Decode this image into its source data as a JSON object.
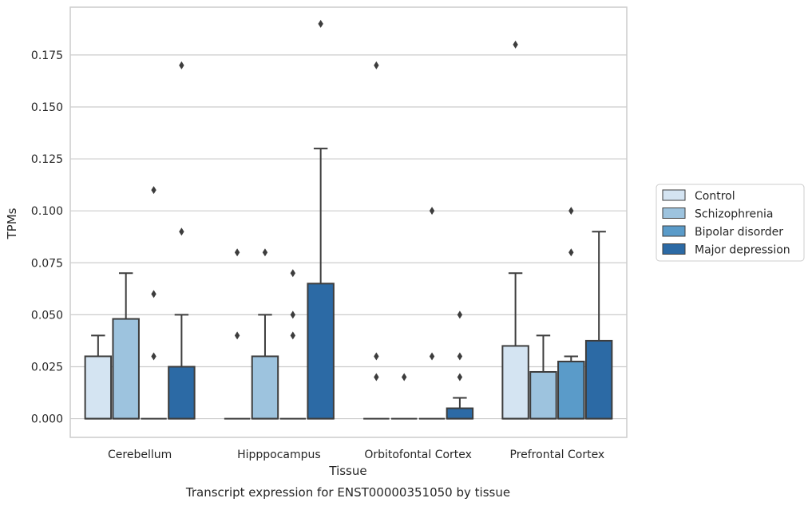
{
  "chart_data": {
    "type": "box",
    "xlabel": "Tissue",
    "ylabel": "TPMs",
    "caption": "Transcript expression for ENST00000351050 by tissue",
    "ylim": [
      -0.009,
      0.198
    ],
    "yticks": [
      0.0,
      0.025,
      0.05,
      0.075,
      0.1,
      0.125,
      0.15,
      0.175
    ],
    "ytick_labels": [
      "0.000",
      "0.025",
      "0.050",
      "0.075",
      "0.100",
      "0.125",
      "0.150",
      "0.175"
    ],
    "grid": "horizontal",
    "legend_position": "right",
    "categories": [
      "Cerebellum",
      "Hipppocampus",
      "Orbitofontal Cortex",
      "Prefrontal Cortex"
    ],
    "series": [
      {
        "name": "Control",
        "color": "#d4e4f2",
        "boxes": [
          {
            "q1": 0.0,
            "median": 0.0,
            "q3": 0.03,
            "whisker_low": 0.0,
            "whisker_high": 0.04,
            "outliers": []
          },
          {
            "q1": 0.0,
            "median": 0.0,
            "q3": 0.0,
            "whisker_low": 0.0,
            "whisker_high": 0.0,
            "outliers": [
              0.04,
              0.08
            ]
          },
          {
            "q1": 0.0,
            "median": 0.0,
            "q3": 0.0,
            "whisker_low": 0.0,
            "whisker_high": 0.0,
            "outliers": [
              0.02,
              0.03,
              0.17
            ]
          },
          {
            "q1": 0.0,
            "median": 0.0,
            "q3": 0.035,
            "whisker_low": 0.0,
            "whisker_high": 0.07,
            "outliers": [
              0.18
            ]
          }
        ]
      },
      {
        "name": "Schizophrenia",
        "color": "#9dc3de",
        "boxes": [
          {
            "q1": 0.0,
            "median": 0.0,
            "q3": 0.048,
            "whisker_low": 0.0,
            "whisker_high": 0.07,
            "outliers": []
          },
          {
            "q1": 0.0,
            "median": 0.0,
            "q3": 0.03,
            "whisker_low": 0.0,
            "whisker_high": 0.05,
            "outliers": [
              0.08
            ]
          },
          {
            "q1": 0.0,
            "median": 0.0,
            "q3": 0.0,
            "whisker_low": 0.0,
            "whisker_high": 0.0,
            "outliers": [
              0.02
            ]
          },
          {
            "q1": 0.0,
            "median": 0.0,
            "q3": 0.0225,
            "whisker_low": 0.0,
            "whisker_high": 0.04,
            "outliers": []
          }
        ]
      },
      {
        "name": "Bipolar disorder",
        "color": "#5a9bc9",
        "boxes": [
          {
            "q1": 0.0,
            "median": 0.0,
            "q3": 0.0,
            "whisker_low": 0.0,
            "whisker_high": 0.0,
            "outliers": [
              0.03,
              0.06,
              0.11
            ]
          },
          {
            "q1": 0.0,
            "median": 0.0,
            "q3": 0.0,
            "whisker_low": 0.0,
            "whisker_high": 0.0,
            "outliers": [
              0.04,
              0.05,
              0.07
            ]
          },
          {
            "q1": 0.0,
            "median": 0.0,
            "q3": 0.0,
            "whisker_low": 0.0,
            "whisker_high": 0.0,
            "outliers": [
              0.03,
              0.1
            ]
          },
          {
            "q1": 0.0,
            "median": 0.0,
            "q3": 0.0275,
            "whisker_low": 0.0,
            "whisker_high": 0.03,
            "outliers": [
              0.08,
              0.1
            ]
          }
        ]
      },
      {
        "name": "Major depression",
        "color": "#2c6aa5",
        "boxes": [
          {
            "q1": 0.0,
            "median": 0.0,
            "q3": 0.025,
            "whisker_low": 0.0,
            "whisker_high": 0.05,
            "outliers": [
              0.09,
              0.17
            ]
          },
          {
            "q1": 0.0,
            "median": 0.0,
            "q3": 0.065,
            "whisker_low": 0.0,
            "whisker_high": 0.13,
            "outliers": [
              0.19
            ]
          },
          {
            "q1": 0.0,
            "median": 0.0,
            "q3": 0.005,
            "whisker_low": 0.0,
            "whisker_high": 0.01,
            "outliers": [
              0.02,
              0.03,
              0.05
            ]
          },
          {
            "q1": 0.0,
            "median": 0.0,
            "q3": 0.0375,
            "whisker_low": 0.0,
            "whisker_high": 0.09,
            "outliers": []
          }
        ]
      }
    ]
  }
}
